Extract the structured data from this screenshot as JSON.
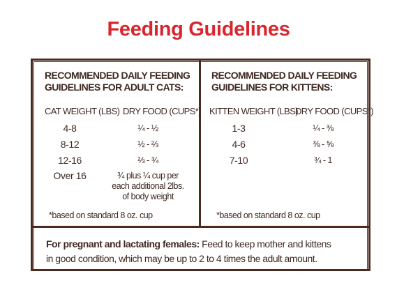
{
  "title": "Feeding Guidelines",
  "panels": [
    {
      "heading": [
        "RECOMMENDED DAILY FEEDING",
        "GUIDELINES FOR ADULT CATS:"
      ],
      "columns": [
        "CAT WEIGHT (LBS)",
        "DRY FOOD (CUPS*)"
      ],
      "rows": [
        [
          "4-8",
          "¼ - ½"
        ],
        [
          "8-12",
          "½ - ⅔"
        ],
        [
          "12-16",
          "⅔ - ¾"
        ],
        [
          "Over 16",
          "¾ plus ¼ cup per each additional 2lbs. of body weight"
        ]
      ],
      "footnote": "*based on standard 8 oz. cup"
    },
    {
      "heading": [
        "RECOMMENDED DAILY FEEDING",
        "GUIDELINES FOR KITTENS:"
      ],
      "columns": [
        "KITTEN WEIGHT (LBS)",
        "DRY FOOD (CUPS*)"
      ],
      "rows": [
        [
          "1-3",
          "¼ - ⅜"
        ],
        [
          "4-6",
          "⅜ - ⅝"
        ],
        [
          "7-10",
          "¾ - 1"
        ]
      ],
      "footnote": "*based on standard 8 oz. cup"
    }
  ],
  "note": {
    "bold": "For pregnant and lactating females:",
    "text": "Feed to keep mother and kittens in good condition, which may be up to 2 to 4 times the adult amount."
  }
}
